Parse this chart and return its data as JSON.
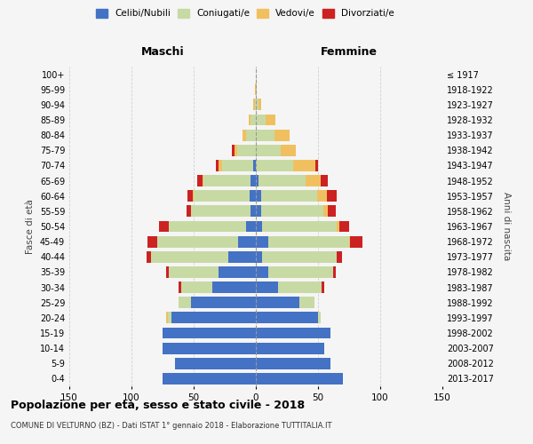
{
  "age_groups": [
    "0-4",
    "5-9",
    "10-14",
    "15-19",
    "20-24",
    "25-29",
    "30-34",
    "35-39",
    "40-44",
    "45-49",
    "50-54",
    "55-59",
    "60-64",
    "65-69",
    "70-74",
    "75-79",
    "80-84",
    "85-89",
    "90-94",
    "95-99",
    "100+"
  ],
  "birth_years": [
    "2013-2017",
    "2008-2012",
    "2003-2007",
    "1998-2002",
    "1993-1997",
    "1988-1992",
    "1983-1987",
    "1978-1982",
    "1973-1977",
    "1968-1972",
    "1963-1967",
    "1958-1962",
    "1953-1957",
    "1948-1952",
    "1943-1947",
    "1938-1942",
    "1933-1937",
    "1928-1932",
    "1923-1927",
    "1918-1922",
    "≤ 1917"
  ],
  "colors": {
    "celibi": "#4472c4",
    "coniugati": "#c8daa4",
    "vedovi": "#f0c060",
    "divorziati": "#cc2222"
  },
  "maschi": {
    "celibi": [
      75,
      65,
      75,
      75,
      68,
      52,
      35,
      30,
      22,
      14,
      8,
      4,
      5,
      4,
      2,
      0,
      0,
      0,
      0,
      0,
      0
    ],
    "coniugati": [
      0,
      0,
      0,
      0,
      3,
      10,
      25,
      40,
      62,
      65,
      62,
      48,
      45,
      38,
      25,
      15,
      8,
      4,
      1,
      0,
      0
    ],
    "vedovi": [
      0,
      0,
      0,
      0,
      1,
      0,
      0,
      0,
      0,
      0,
      0,
      0,
      1,
      1,
      3,
      2,
      3,
      2,
      1,
      1,
      0
    ],
    "divorziati": [
      0,
      0,
      0,
      0,
      0,
      0,
      2,
      2,
      4,
      8,
      8,
      4,
      4,
      4,
      2,
      2,
      0,
      0,
      0,
      0,
      0
    ]
  },
  "femmine": {
    "nubili": [
      70,
      60,
      55,
      60,
      50,
      35,
      18,
      10,
      5,
      10,
      5,
      4,
      4,
      2,
      0,
      0,
      0,
      0,
      0,
      0,
      0
    ],
    "coniugate": [
      0,
      0,
      0,
      0,
      2,
      12,
      35,
      52,
      60,
      65,
      60,
      50,
      45,
      38,
      30,
      20,
      15,
      8,
      2,
      0,
      0
    ],
    "vedove": [
      0,
      0,
      0,
      0,
      0,
      0,
      0,
      0,
      0,
      1,
      2,
      4,
      8,
      12,
      18,
      12,
      12,
      8,
      2,
      1,
      0
    ],
    "divorziate": [
      0,
      0,
      0,
      0,
      0,
      0,
      2,
      2,
      4,
      10,
      8,
      6,
      8,
      6,
      2,
      0,
      0,
      0,
      0,
      0,
      0
    ]
  },
  "xlim": 150,
  "title": "Popolazione per età, sesso e stato civile - 2018",
  "subtitle": "COMUNE DI VELTURNO (BZ) - Dati ISTAT 1° gennaio 2018 - Elaborazione TUTTITALIA.IT",
  "ylabel_left": "Fasce di età",
  "ylabel_right": "Anni di nascita",
  "xlabel_maschi": "Maschi",
  "xlabel_femmine": "Femmine",
  "legend_labels": [
    "Celibi/Nubili",
    "Coniugati/e",
    "Vedovi/e",
    "Divorziati/e"
  ],
  "bg_color": "#f5f5f5",
  "grid_color": "#cccccc"
}
